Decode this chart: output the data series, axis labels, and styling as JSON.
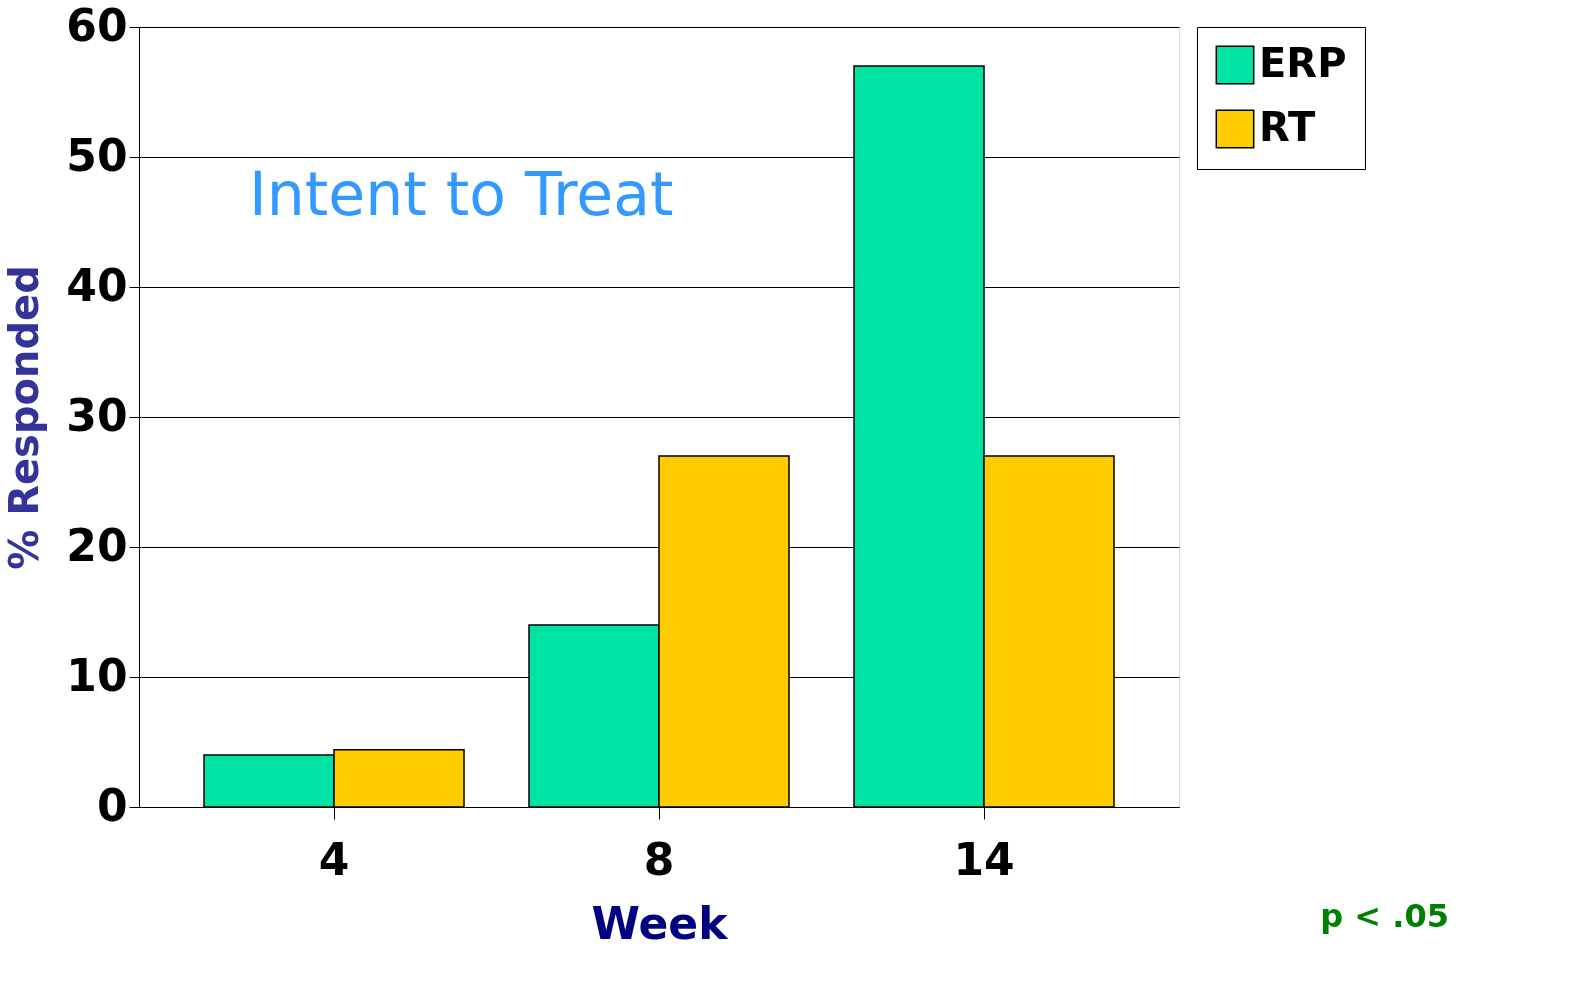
{
  "chart_data": {
    "type": "bar",
    "categories": [
      "4",
      "8",
      "14"
    ],
    "series": [
      {
        "name": "ERP",
        "color": "#00e3a5",
        "values": [
          4,
          14,
          57
        ]
      },
      {
        "name": "RT",
        "color": "#ffcc00",
        "values": [
          4.4,
          27,
          27
        ]
      }
    ],
    "xlabel": "Week",
    "ylabel": "% Responded",
    "ylim": [
      0,
      60
    ],
    "yticks": [
      0,
      10,
      20,
      30,
      40,
      50,
      60
    ],
    "grid": "y",
    "legend": "right",
    "annotations": [
      "Intent to Treat",
      "p < .05"
    ]
  }
}
